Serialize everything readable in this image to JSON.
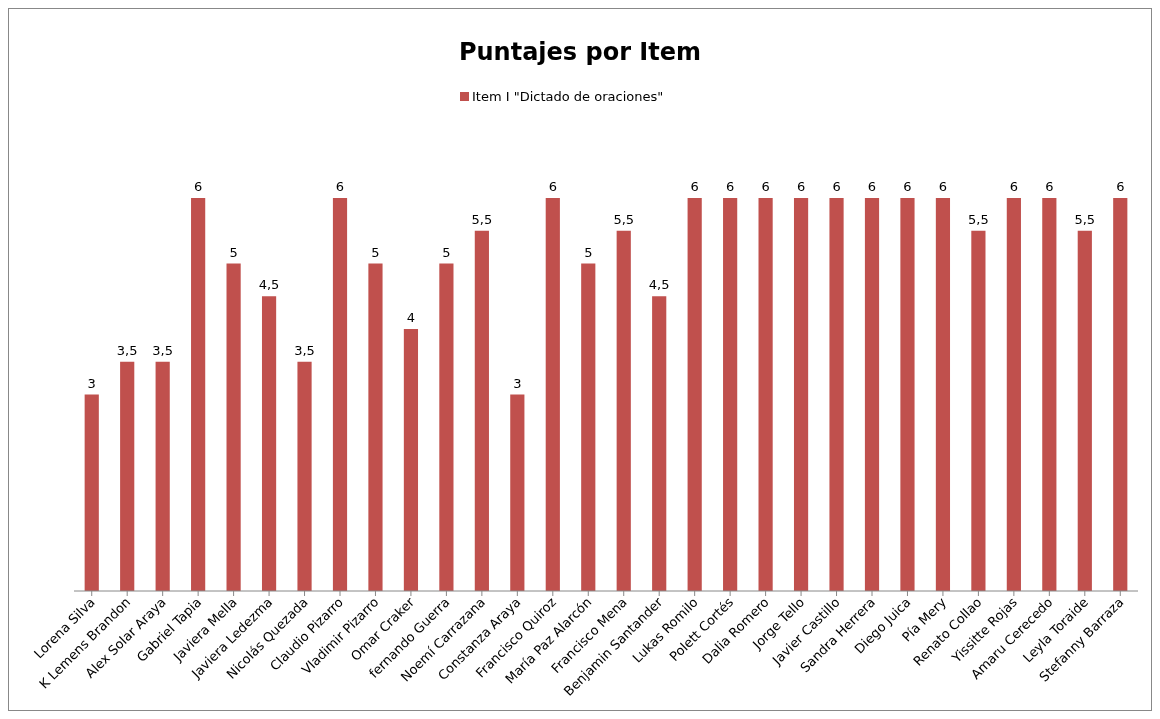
{
  "chart_data": {
    "type": "bar",
    "title": "Puntajes por Item",
    "categories": [
      "Lorena Silva",
      "K Lemens Brandon",
      "Alex Solar Araya",
      "Gabriel Tapia",
      "Javiera Mella",
      "Javiera Ledezma",
      "Nicolás Quezada",
      "Claudio Pizarro",
      "Vladimir Pizarro",
      "Omar Craker",
      "fernando Guerra",
      "Noemí Carrazana",
      "Constanza Araya",
      "Francisco Quiroz",
      "María Paz Alarcón",
      "Francisco Mena",
      "Benjamin Santander",
      "Lukas Romilo",
      "Polett Cortés",
      "Dalia Romero",
      "Jorge Tello",
      "Javier Castillo",
      "Sandra Herrera",
      "Diego Juica",
      "Pía Mery",
      "Renato Collao",
      "Yissitte Rojas",
      "Amaru Cerecedo",
      "Leyla Toraide",
      "Stefanny Barraza"
    ],
    "series": [
      {
        "name": "Item I \"Dictado de oraciones\"",
        "color": "#c0504d",
        "values": [
          3,
          3.5,
          3.5,
          6,
          5,
          4.5,
          3.5,
          6,
          5,
          4,
          5,
          5.5,
          3,
          6,
          5,
          5.5,
          4.5,
          6,
          6,
          6,
          6,
          6,
          6,
          6,
          6,
          5.5,
          6,
          6,
          5.5,
          6
        ],
        "value_labels": [
          "3",
          "3,5",
          "3,5",
          "6",
          "5",
          "4,5",
          "3,5",
          "6",
          "5",
          "4",
          "5",
          "5,5",
          "3",
          "6",
          "5",
          "5,5",
          "4,5",
          "6",
          "6",
          "6",
          "6",
          "6",
          "6",
          "6",
          "6",
          "5,5",
          "6",
          "6",
          "5,5",
          "6"
        ]
      }
    ],
    "legend": "top"
  }
}
